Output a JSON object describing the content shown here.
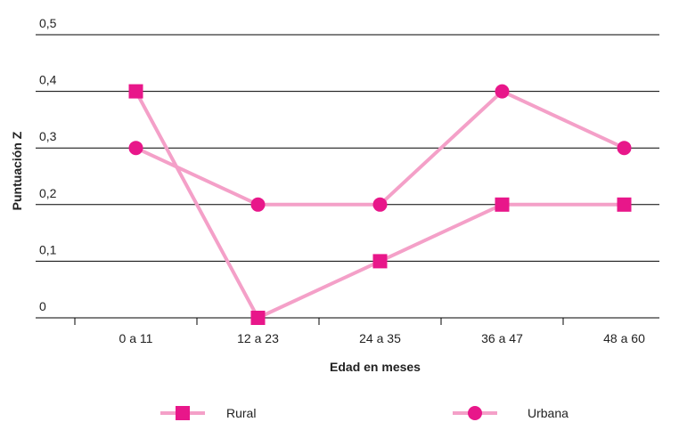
{
  "chart_data": {
    "type": "line",
    "categories": [
      "0 a 11",
      "12 a 23",
      "24 a 35",
      "36 a 47",
      "48 a 60"
    ],
    "series": [
      {
        "name": "Rural",
        "values": [
          0.4,
          0.0,
          0.1,
          0.2,
          0.2
        ],
        "marker": "square"
      },
      {
        "name": "Urbana",
        "values": [
          0.3,
          0.2,
          0.2,
          0.4,
          0.3
        ],
        "marker": "circle"
      }
    ],
    "xlabel": "Edad en meses",
    "ylabel": "Puntuación Z",
    "ylim": [
      0,
      0.5
    ],
    "yticks": [
      {
        "value": 0,
        "label": "0"
      },
      {
        "value": 0.1,
        "label": "0,1"
      },
      {
        "value": 0.2,
        "label": "0,2"
      },
      {
        "value": 0.3,
        "label": "0,3"
      },
      {
        "value": 0.4,
        "label": "0,4"
      },
      {
        "value": 0.5,
        "label": "0,5"
      }
    ],
    "grid": true,
    "legend_position": "bottom",
    "colors": {
      "line": "#f4a0c8",
      "marker": "#e8178a",
      "grid": "#000000"
    }
  }
}
